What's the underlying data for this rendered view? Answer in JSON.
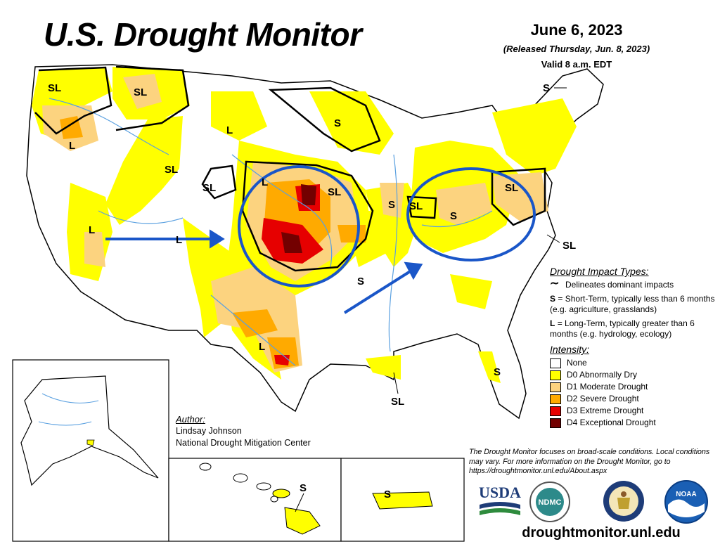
{
  "title": "U.S. Drought Monitor",
  "date": "June 6, 2023",
  "released": "(Released Thursday, Jun. 8, 2023)",
  "valid": "Valid 8 a.m. EDT",
  "colors": {
    "none": "#ffffff",
    "d0": "#ffff00",
    "d1": "#fcd37f",
    "d2": "#ffaa00",
    "d3": "#e60000",
    "d4": "#730000",
    "annotation": "#1a56c8",
    "water": "#5aa0e0"
  },
  "impact_types": {
    "header": "Drought Impact Types:",
    "delineates": "Delineates dominant impacts",
    "short_term_key": "S",
    "short_term_text": "= Short-Term, typically less than 6 months (e.g. agriculture, grasslands)",
    "long_term_key": "L",
    "long_term_text": "= Long-Term, typically greater than 6 months (e.g. hydrology, ecology)"
  },
  "intensity": {
    "header": "Intensity:",
    "levels": [
      {
        "label": "None"
      },
      {
        "label": "D0 Abnormally Dry"
      },
      {
        "label": "D1 Moderate Drought"
      },
      {
        "label": "D2 Severe Drought"
      },
      {
        "label": "D3 Extreme Drought"
      },
      {
        "label": "D4 Exceptional Drought"
      }
    ]
  },
  "author": {
    "header": "Author:",
    "name": "Lindsay Johnson",
    "org": "National Drought Mitigation Center"
  },
  "disclaimer": "The Drought Monitor focuses on broad-scale conditions. Local conditions may vary. For more information on the Drought Monitor, go to https://droughtmonitor.unl.edu/About.aspx",
  "url": "droughtmonitor.unl.edu",
  "logos": {
    "usda": "USDA",
    "ndmc": "NDMC",
    "noaa": "NOAA"
  },
  "map_labels": {
    "sl": "SL",
    "s": "S",
    "l": "L"
  }
}
